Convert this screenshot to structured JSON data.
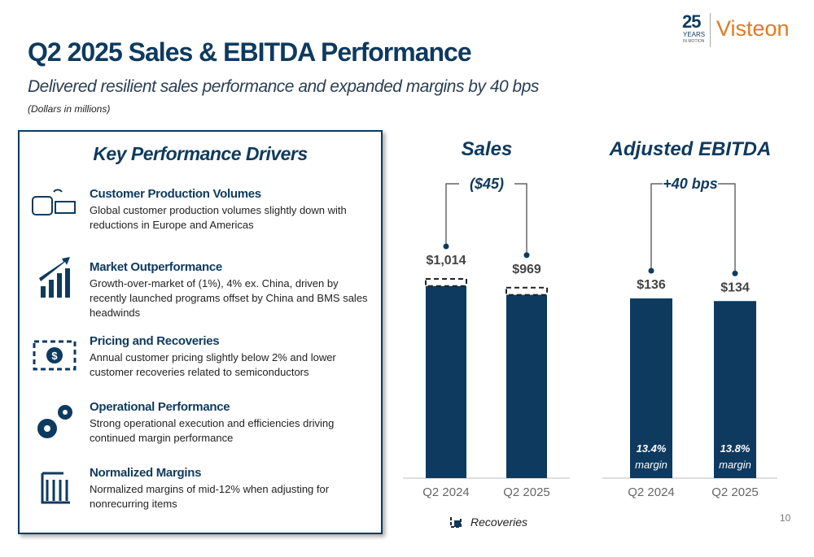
{
  "header": {
    "title": "Q2 2025 Sales & EBITDA Performance",
    "subtitle": "Delivered resilient sales performance and expanded margins by 40 bps",
    "note": "(Dollars in millions)"
  },
  "logo": {
    "number": "25",
    "years": "YEARS",
    "tagline": "IN MOTION",
    "brand": "Visteon"
  },
  "drivers": {
    "title": "Key Performance Drivers",
    "items": [
      {
        "title": "Customer Production Volumes",
        "text": "Global customer production volumes slightly down with reductions in Europe and Americas"
      },
      {
        "title": "Market Outperformance",
        "text": "Growth-over-market of (1%), 4% ex. China, driven by recently launched programs offset by China and BMS sales headwinds"
      },
      {
        "title": "Pricing and Recoveries",
        "text": "Annual customer pricing slightly below 2% and lower customer recoveries related to semiconductors"
      },
      {
        "title": "Operational Performance",
        "text": "Strong operational execution and efficiencies driving continued margin performance"
      },
      {
        "title": "Normalized Margins",
        "text": "Normalized margins of mid-12% when adjusting for nonrecurring items"
      }
    ]
  },
  "chart_data": [
    {
      "type": "bar",
      "title": "Sales",
      "annotation": "($45)",
      "categories": [
        "Q2 2024",
        "Q2 2025"
      ],
      "values": [
        1014,
        969
      ],
      "value_labels": [
        "$1,014",
        "$969"
      ],
      "color": "#0e3a5f",
      "recoveries": {
        "name": "Recoveries",
        "values": [
          20,
          20
        ]
      }
    },
    {
      "type": "bar",
      "title": "Adjusted EBITDA",
      "annotation": "+40 bps",
      "categories": [
        "Q2 2024",
        "Q2 2025"
      ],
      "values": [
        136,
        134
      ],
      "value_labels": [
        "$136",
        "$134"
      ],
      "color": "#0e3a5f",
      "margins": [
        13.4,
        13.8
      ],
      "margin_labels": [
        "13.4%",
        "13.8%"
      ],
      "margin_text": "margin"
    }
  ],
  "page_number": "10"
}
